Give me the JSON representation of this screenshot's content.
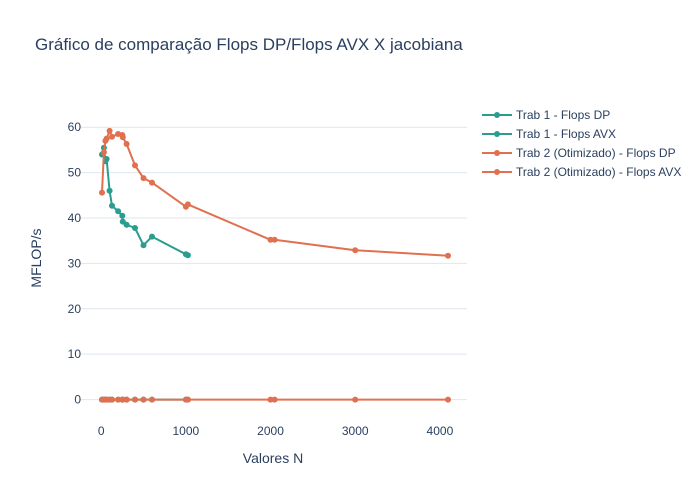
{
  "chart_data": {
    "type": "line",
    "title": "Gráfico de comparação Flops DP/Flops AVX X jacobiana",
    "xlabel": "Valores N",
    "ylabel": "MFLOP/s",
    "xlim": [
      -250,
      4320
    ],
    "ylim": [
      -4.5,
      66
    ],
    "x_ticks": [
      0,
      1000,
      2000,
      3000,
      4000
    ],
    "y_ticks": [
      0,
      10,
      20,
      30,
      40,
      50,
      60
    ],
    "grid": "horizontal",
    "legend_position": "top-right",
    "series": [
      {
        "name": "Trab 1 - Flops DP",
        "color": "#2a9d8f",
        "x": [
          10,
          32,
          50,
          64,
          100,
          128,
          200,
          250,
          256,
          300,
          400,
          500,
          600,
          1000,
          1024
        ],
        "y": [
          54,
          55.5,
          52.5,
          53,
          46,
          42.7,
          41.5,
          40.5,
          39.2,
          38.5,
          37.8,
          34,
          35.9,
          32,
          31.8
        ]
      },
      {
        "name": "Trab 1 - Flops AVX",
        "color": "#2a9d8f",
        "x": [
          10,
          32,
          50,
          64,
          100,
          128,
          200,
          250,
          256,
          300,
          400,
          500,
          600,
          1000,
          1024
        ],
        "y": [
          0,
          0,
          0,
          0,
          0,
          0,
          0,
          0,
          0,
          0,
          0,
          0,
          0,
          0,
          0
        ]
      },
      {
        "name": "Trab 2 (Otimizado) - Flops DP",
        "color": "#e07050",
        "x": [
          10,
          32,
          50,
          64,
          100,
          128,
          200,
          250,
          256,
          300,
          400,
          500,
          600,
          1000,
          1024,
          2000,
          2048,
          3000,
          4096
        ],
        "y": [
          45.6,
          54.5,
          57,
          57.5,
          59.2,
          57.9,
          58.5,
          58.3,
          57.8,
          56.3,
          51.6,
          48.8,
          47.8,
          42.5,
          43,
          35.2,
          35.2,
          32.9,
          31.7
        ]
      },
      {
        "name": "Trab 2 (Otimizado) - Flops AVX",
        "color": "#e07050",
        "x": [
          10,
          32,
          50,
          64,
          100,
          128,
          200,
          250,
          256,
          300,
          400,
          500,
          600,
          1000,
          1024,
          2000,
          2048,
          3000,
          4096
        ],
        "y": [
          0,
          0,
          0,
          0,
          0,
          0,
          0,
          0,
          0,
          0,
          0,
          0,
          0,
          0,
          0,
          0,
          0,
          0,
          0
        ]
      }
    ]
  }
}
